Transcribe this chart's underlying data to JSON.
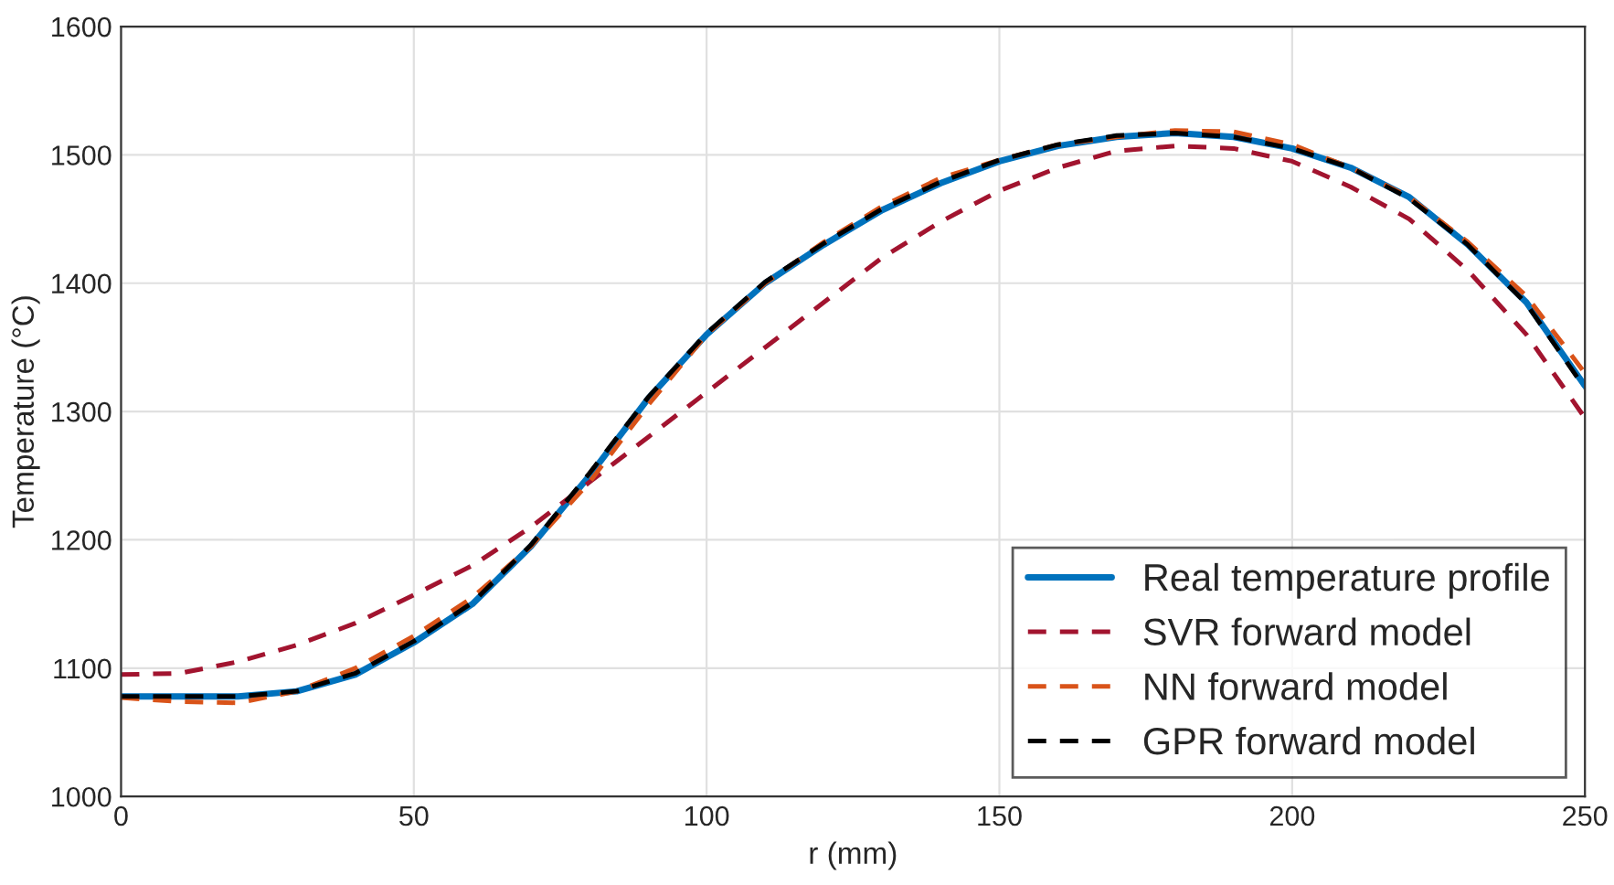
{
  "chart_data": {
    "type": "line",
    "xlabel": "r (mm)",
    "ylabel": "Temperature (°C)",
    "xlim": [
      0,
      250
    ],
    "ylim": [
      1000,
      1600
    ],
    "xticks": [
      0,
      50,
      100,
      150,
      200,
      250
    ],
    "yticks": [
      1000,
      1100,
      1200,
      1300,
      1400,
      1500,
      1600
    ],
    "grid": true,
    "legend": "bottom right",
    "x": [
      0,
      10,
      20,
      30,
      40,
      50,
      60,
      70,
      80,
      90,
      100,
      110,
      120,
      130,
      140,
      150,
      160,
      170,
      180,
      190,
      200,
      210,
      220,
      230,
      240,
      250
    ],
    "series": [
      {
        "name": "Real temperature profile",
        "color": "#0072bd",
        "line_style": "solid",
        "values": [
          1078,
          1078,
          1078,
          1082,
          1095,
          1120,
          1150,
          1195,
          1250,
          1310,
          1360,
          1400,
          1430,
          1457,
          1478,
          1495,
          1507,
          1514,
          1517,
          1514,
          1505,
          1490,
          1467,
          1430,
          1385,
          1320
        ]
      },
      {
        "name": "SVR forward model",
        "color": "#a2142f",
        "line_style": "dashed",
        "values": [
          1095,
          1096,
          1105,
          1118,
          1135,
          1157,
          1180,
          1210,
          1245,
          1280,
          1315,
          1350,
          1385,
          1420,
          1448,
          1472,
          1490,
          1503,
          1507,
          1505,
          1495,
          1475,
          1450,
          1410,
          1360,
          1295
        ]
      },
      {
        "name": "NN forward model",
        "color": "#d95319",
        "line_style": "dashed",
        "values": [
          1077,
          1074,
          1073,
          1082,
          1100,
          1125,
          1155,
          1195,
          1245,
          1305,
          1360,
          1400,
          1432,
          1460,
          1482,
          1496,
          1508,
          1514,
          1519,
          1518,
          1508,
          1490,
          1467,
          1432,
          1390,
          1330
        ]
      },
      {
        "name": "GPR forward model",
        "color": "#000000",
        "line_style": "dashed",
        "values": [
          1078,
          1078,
          1078,
          1082,
          1096,
          1121,
          1151,
          1196,
          1252,
          1311,
          1361,
          1401,
          1431,
          1458,
          1479,
          1496,
          1508,
          1515,
          1517,
          1514,
          1505,
          1490,
          1466,
          1430,
          1384,
          1318
        ]
      }
    ]
  }
}
